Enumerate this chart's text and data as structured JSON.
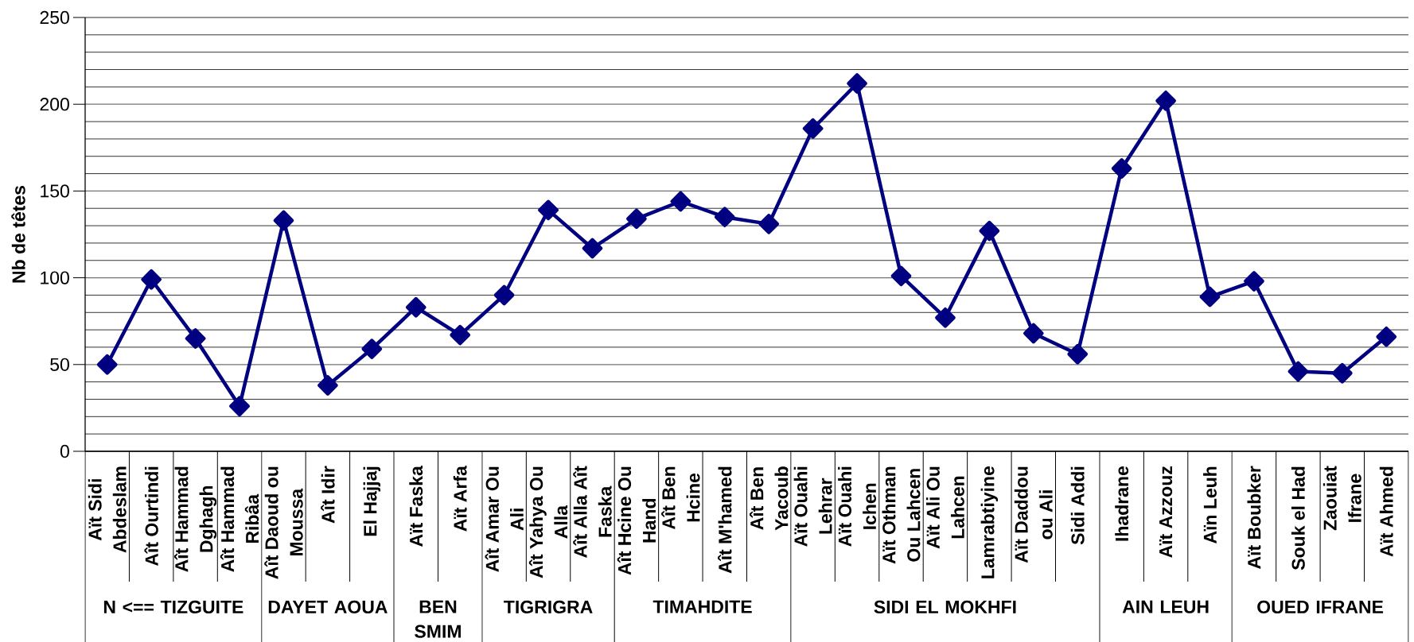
{
  "chart_data": {
    "type": "line",
    "ylabel": "Nb de têtes",
    "categories": [
      "Aït Sidi Abdeslam",
      "Aît Ourtindi",
      "Aît Hammad Dghagh",
      "Aît Hammad Ribâa",
      "Aît Daoud ou Moussa",
      "Aît Idir",
      "El Hajjaj",
      "Aït Faska",
      "Aït Arfa",
      "Aît Amar Ou Ali",
      "Aît Yahya Ou Alla",
      "Aît Alla Aît Faska",
      "Aît Hcine Ou Hand",
      "Aît Ben Hcine",
      "Aît M'hamed",
      "Aît Ben Yacoub",
      "Aït Ouahi Lehrar",
      "Aït Ouahi Ichen",
      "Aït Othman Ou Lahcen",
      "Aït Ali Ou Lahcen",
      "Lamrabtiyine",
      "Aït Daddou ou Ali",
      "Sidi Addi",
      "Ihadrane",
      "Aït Azzouz",
      "Aïn Leuh",
      "Aït Boubker",
      "Souk el Had",
      "Zaouiat Ifrane",
      "Aït Ahmed"
    ],
    "series": [
      {
        "color": "#000080",
        "values": [
          50,
          99,
          65,
          26,
          133,
          38,
          59,
          83,
          67,
          90,
          139,
          117,
          134,
          144,
          135,
          131,
          186,
          212,
          101,
          77,
          127,
          68,
          56,
          163,
          202,
          89,
          98,
          46,
          45,
          66
        ]
      }
    ],
    "ylim": [
      0,
      250
    ],
    "yticks": [
      0,
      50,
      100,
      150,
      200,
      250
    ],
    "grid": "y",
    "marker": "diamond",
    "line_style": "solid",
    "annotations": [
      "N <== TIZGUITE",
      "DAYET AOUA",
      "BEN SMIM",
      "TIGRIGRA",
      "TIMAHDITE",
      "SIDI EL MOKHFI",
      "AIN LEUH",
      "OUED IFRANE"
    ]
  }
}
